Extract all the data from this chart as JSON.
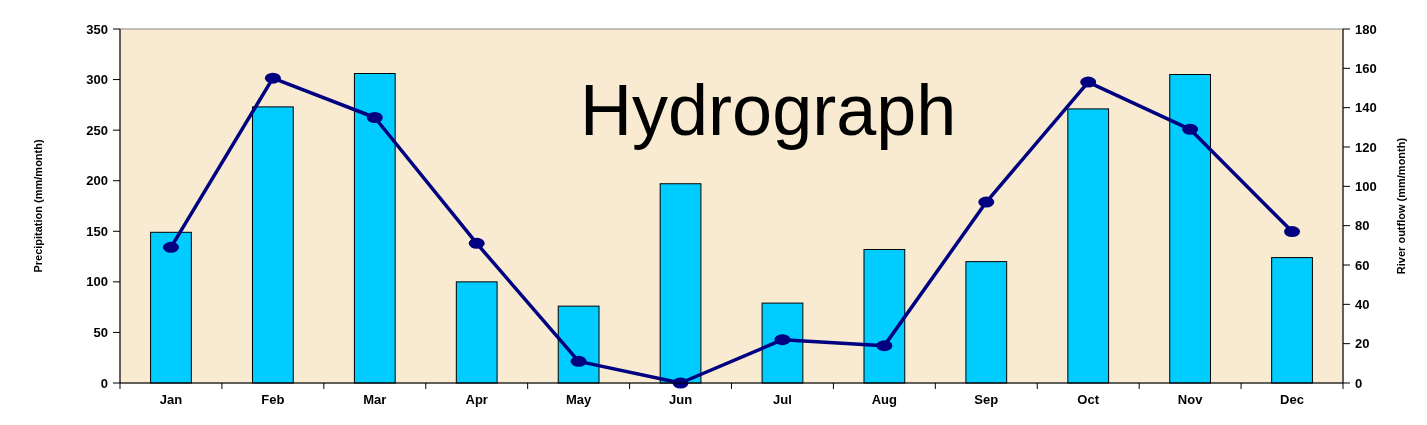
{
  "chart_data": {
    "type": "bar",
    "title": "Hydrograph",
    "ylabel": "Precipitation (mm/month)",
    "y2label": "River outflow (mm/month)",
    "categories": [
      "Jan",
      "Feb",
      "Mar",
      "Apr",
      "May",
      "Jun",
      "Jul",
      "Aug",
      "Sep",
      "Oct",
      "Nov",
      "Dec"
    ],
    "series": [
      {
        "color": "#00ccff",
        "values": [
          149,
          273,
          306,
          100,
          76,
          197,
          79,
          132,
          120,
          271,
          305,
          124
        ]
      },
      {
        "type": "line",
        "axis": "y2",
        "color": "#000080",
        "values": [
          69,
          155,
          135,
          71,
          11,
          0,
          22,
          19,
          92,
          153,
          129,
          77
        ]
      }
    ],
    "ylim": [
      0,
      350
    ],
    "yticks": [
      0,
      50,
      100,
      150,
      200,
      250,
      300,
      350
    ],
    "y2lim": [
      0,
      180
    ],
    "y2ticks": [
      0,
      20,
      40,
      60,
      80,
      100,
      120,
      140,
      160,
      180
    ],
    "grid": false,
    "marker": "circle",
    "line_style": "solid"
  }
}
